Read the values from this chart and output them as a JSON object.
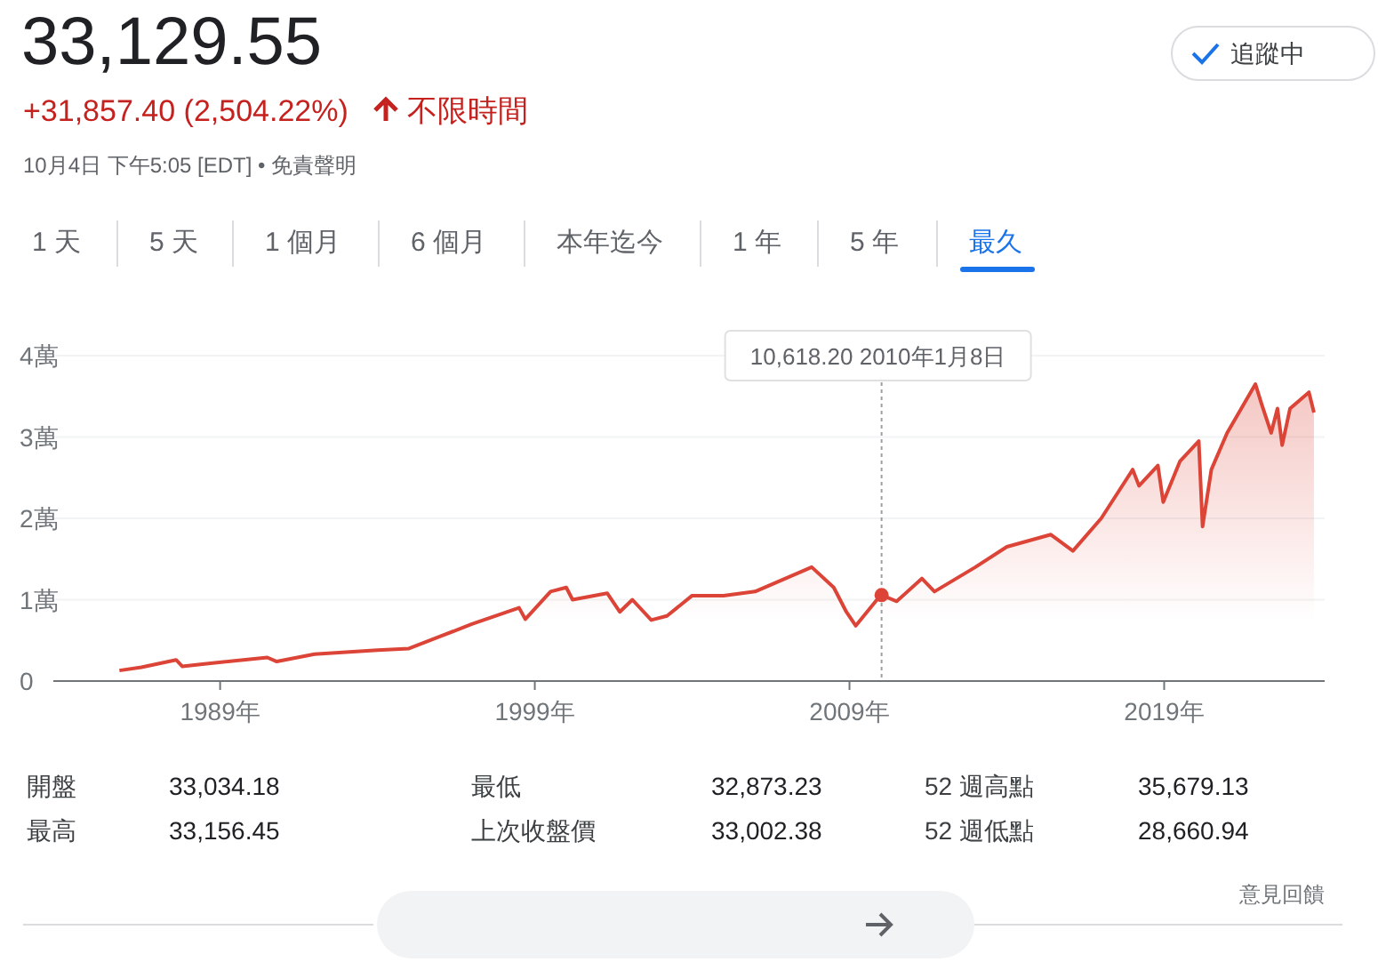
{
  "chart_data": {
    "type": "area",
    "title": "33,129.55",
    "subtitle": "+31,857.40 (2,504.22%)",
    "annotations": [
      "不限時間",
      "10月4日 下午5:05 [EDT] • 免責聲明",
      "追蹤中",
      "1 天",
      "5 天",
      "1 個月",
      "6 個月",
      "本年迄今",
      "1 年",
      "5 年",
      "最久",
      "開盤",
      "33,034.18",
      "最高",
      "33,156.45",
      "最低",
      "32,873.23",
      "上次收盤價",
      "33,002.38",
      "52 週高點",
      "35,679.13",
      "52 週低點",
      "28,660.94",
      "意見回饋"
    ],
    "ref_lines": [
      {
        "axis": "x",
        "value": 2010.02,
        "label": "10,618.20 2010年1月8日",
        "color": "#9aa0a6",
        "line_style": "dotted"
      }
    ],
    "x": [
      1985.8,
      1986.5,
      1987.6,
      1987.8,
      1988.5,
      1990.5,
      1990.8,
      1992,
      1994,
      1995,
      1996,
      1997,
      1998.5,
      1998.7,
      1999.5,
      2000,
      2000.2,
      2001.3,
      2001.7,
      2002.1,
      2002.7,
      2003.2,
      2004,
      2005,
      2006,
      2007.8,
      2008.5,
      2008.9,
      2009.2,
      2010,
      2010.5,
      2011.3,
      2011.7,
      2013,
      2014,
      2015.4,
      2016.1,
      2017,
      2018,
      2018.2,
      2018.8,
      2018.97,
      2019.5,
      2020.1,
      2020.22,
      2020.5,
      2021,
      2021.9,
      2022.1,
      2022.4,
      2022.6,
      2022.75,
      2023,
      2023.6,
      2023.76
    ],
    "series": [
      {
        "color": "#db4437",
        "values": [
          0.13,
          0.17,
          0.26,
          0.18,
          0.21,
          0.29,
          0.24,
          0.33,
          0.38,
          0.4,
          0.55,
          0.7,
          0.9,
          0.76,
          1.1,
          1.15,
          1.0,
          1.08,
          0.85,
          1.0,
          0.75,
          0.8,
          1.05,
          1.05,
          1.1,
          1.4,
          1.15,
          0.85,
          0.68,
          1.06,
          0.98,
          1.26,
          1.1,
          1.4,
          1.65,
          1.8,
          1.6,
          2.0,
          2.6,
          2.4,
          2.65,
          2.2,
          2.7,
          2.95,
          1.9,
          2.6,
          3.05,
          3.65,
          3.4,
          3.05,
          3.35,
          2.9,
          3.35,
          3.55,
          3.3
        ]
      }
    ],
    "xlim": [
      1983.7,
      2024.1
    ],
    "xticks": [
      {
        "value": 1989,
        "label": "1989年"
      },
      {
        "value": 1999,
        "label": "1999年"
      },
      {
        "value": 2009,
        "label": "2009年"
      },
      {
        "value": 2019,
        "label": "2019年"
      }
    ],
    "ylim": [
      0,
      4
    ],
    "yticks": [
      0,
      {
        "value": 1,
        "label": "1萬"
      },
      {
        "value": 2,
        "label": "2萬"
      },
      {
        "value": 3,
        "label": "3萬"
      },
      {
        "value": 4,
        "label": "4萬"
      }
    ],
    "grid": "y"
  }
}
